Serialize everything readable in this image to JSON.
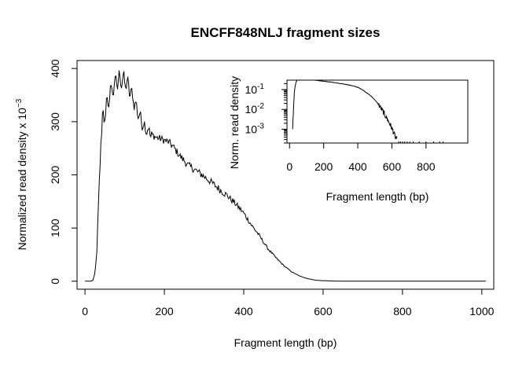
{
  "chart_data": [
    {
      "type": "line",
      "title": "ENCFF848NLJ fragment sizes",
      "xlabel": "Fragment length (bp)",
      "ylabel": "Normalized read density x 10",
      "ylabel_exponent": "−3",
      "xlim": [
        -20,
        1030
      ],
      "ylim": [
        -15,
        415
      ],
      "x_ticks": [
        "0",
        "200",
        "400",
        "600",
        "800",
        "1000"
      ],
      "y_ticks": [
        "0",
        "100",
        "200",
        "300",
        "400"
      ],
      "series": [
        {
          "x": [
            0,
            15,
            20,
            25,
            30,
            35,
            40,
            45,
            50,
            55,
            60,
            65,
            70,
            75,
            80,
            85,
            90,
            95,
            100,
            105,
            110,
            115,
            120,
            125,
            130,
            140,
            150,
            160,
            170,
            180,
            190,
            200,
            210,
            220,
            240,
            260,
            280,
            300,
            320,
            340,
            360,
            380,
            400,
            420,
            440,
            460,
            480,
            500,
            520,
            540,
            560,
            580,
            600,
            620,
            640,
            700,
            800,
            900,
            1010
          ],
          "values": [
            0,
            0,
            2,
            15,
            55,
            170,
            255,
            300,
            318,
            330,
            342,
            355,
            362,
            370,
            375,
            378,
            380,
            378,
            376,
            372,
            365,
            355,
            345,
            335,
            325,
            305,
            290,
            282,
            275,
            270,
            268,
            265,
            262,
            255,
            235,
            218,
            208,
            197,
            185,
            172,
            160,
            145,
            128,
            105,
            85,
            62,
            45,
            30,
            18,
            10,
            5,
            2,
            1,
            0.5,
            0,
            0,
            0,
            0,
            0
          ]
        }
      ]
    },
    {
      "type": "line",
      "title": "",
      "xlabel": "Fragment length (bp)",
      "ylabel": "Norm. read density",
      "y_scale": "log",
      "xlim": [
        -15,
        1045
      ],
      "ylim": [
        0.0002,
        0.3
      ],
      "x_ticks": [
        "0",
        "200",
        "400",
        "600",
        "800"
      ],
      "y_ticks": [
        {
          "base": "10",
          "exp": "-1"
        },
        {
          "base": "10",
          "exp": "-2"
        },
        {
          "base": "10",
          "exp": "-3"
        }
      ],
      "series": [
        {
          "x": [
            18,
            22,
            26,
            30,
            35,
            40,
            50,
            60,
            80,
            100,
            150,
            200,
            250,
            300,
            350,
            400,
            450,
            480,
            500,
            520,
            540,
            560,
            580,
            600,
            610,
            620,
            630
          ],
          "values": [
            0.001,
            0.005,
            0.03,
            0.1,
            0.18,
            0.26,
            0.32,
            0.34,
            0.36,
            0.38,
            0.3,
            0.265,
            0.235,
            0.2,
            0.17,
            0.13,
            0.07,
            0.045,
            0.03,
            0.018,
            0.01,
            0.005,
            0.0024,
            0.0011,
            0.0007,
            0.0004,
            0.0003
          ]
        }
      ]
    }
  ]
}
